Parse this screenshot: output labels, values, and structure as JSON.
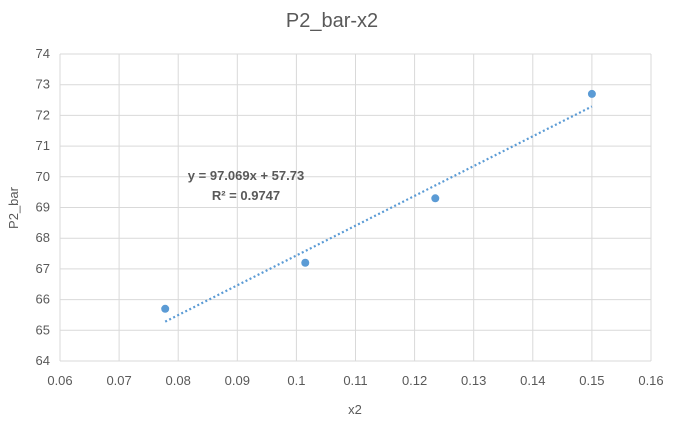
{
  "chart_data": {
    "type": "scatter",
    "title": "P2_bar-x2",
    "xlabel": "x2",
    "ylabel": "P2_bar",
    "xlim": [
      0.06,
      0.16
    ],
    "ylim": [
      64,
      74
    ],
    "xticks": [
      "0.06",
      "0.07",
      "0.08",
      "0.09",
      "0.1",
      "0.11",
      "0.12",
      "0.13",
      "0.14",
      "0.15",
      "0.16"
    ],
    "yticks": [
      "64",
      "65",
      "66",
      "67",
      "68",
      "69",
      "70",
      "71",
      "72",
      "73",
      "74"
    ],
    "grid": true,
    "legend": "none",
    "marker_color": "#5B9BD5",
    "series": [
      {
        "points": [
          {
            "x": 0.0778,
            "y": 65.7
          },
          {
            "x": 0.1015,
            "y": 67.2
          },
          {
            "x": 0.1235,
            "y": 69.3
          },
          {
            "x": 0.15,
            "y": 72.7
          }
        ]
      }
    ],
    "trendline": {
      "type": "linear",
      "slope": 97.069,
      "intercept": 57.73,
      "x_range": [
        0.0778,
        0.15
      ],
      "style": "dotted",
      "equation_label": "y = 97.069x + 57.73",
      "r2_label": "R² = 0.9747"
    }
  }
}
